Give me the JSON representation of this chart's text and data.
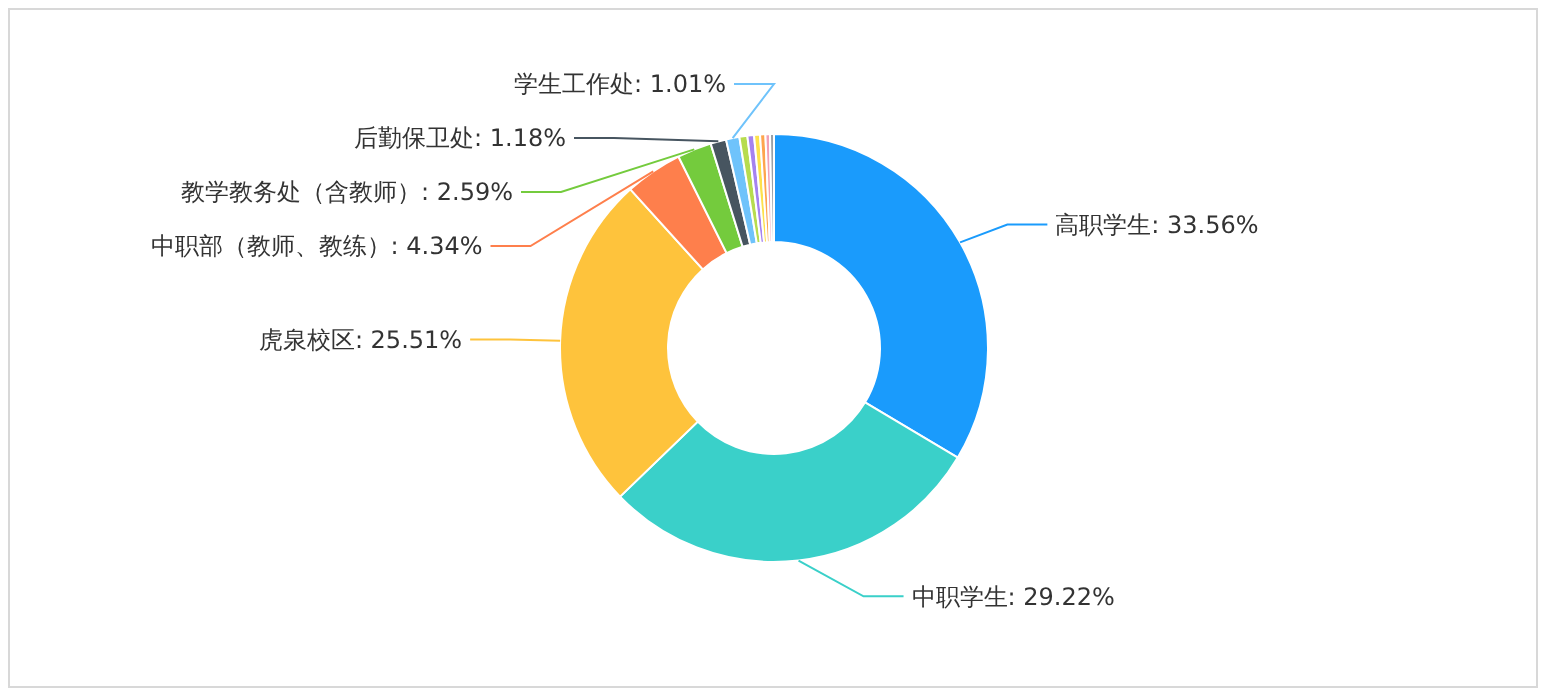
{
  "chart_data": {
    "type": "donut",
    "categories": [
      "高职学生",
      "中职学生",
      "虎泉校区",
      "中职部（教师、教练）",
      "教学教务处（含教师）",
      "后勤保卫处",
      "学生工作处",
      null,
      null,
      null,
      null,
      null,
      null
    ],
    "values": [
      33.56,
      29.22,
      25.51,
      4.34,
      2.59,
      1.18,
      1.01,
      0.6,
      0.5,
      0.45,
      0.4,
      0.34,
      0.3
    ],
    "value_labels": [
      "33.56%",
      "29.22%",
      "25.51%",
      "4.34%",
      "2.59%",
      "1.18%",
      "1.01%",
      null,
      null,
      null,
      null,
      null,
      null
    ],
    "colors": [
      "#1a9bfc",
      "#3ad0c9",
      "#fec33c",
      "#fe7f4c",
      "#74cb3d",
      "#475560",
      "#6fc3fb",
      "#b7dc4f",
      "#a582ef",
      "#fde14c",
      "#fea54d",
      "#f2a0b5",
      "#9aa0a6"
    ]
  }
}
